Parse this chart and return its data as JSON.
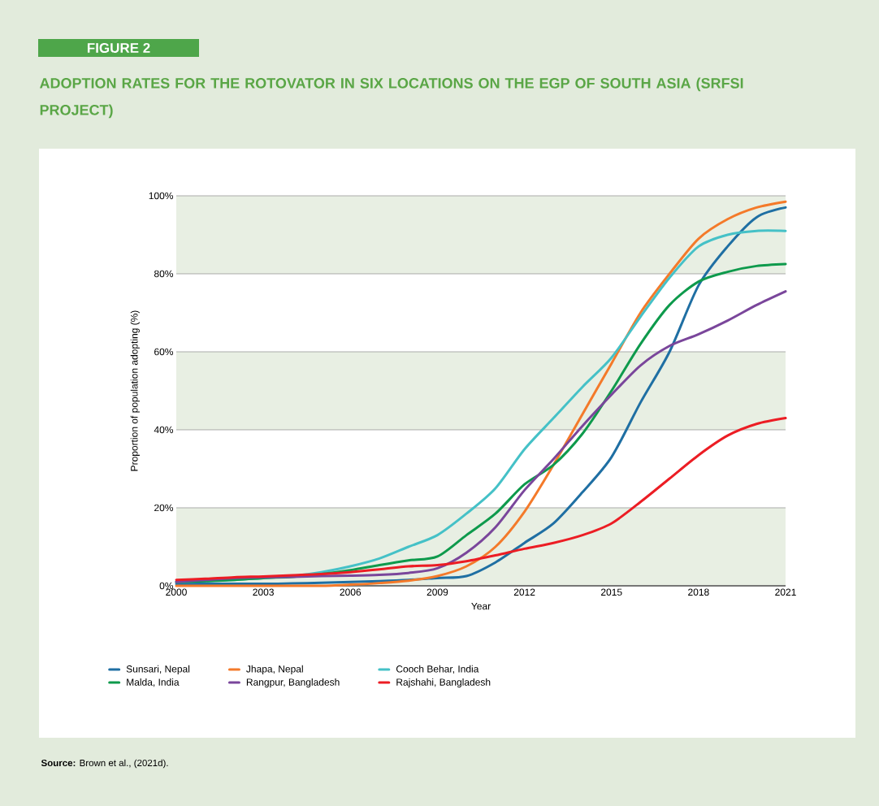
{
  "chart_data": {
    "type": "line",
    "title": "ADOPTION RATES FOR THE ROTOVATOR IN SIX LOCATIONS ON THE EGP OF SOUTH ASIA (SRFSI PROJECT)",
    "xlabel": "Year",
    "ylabel": "Proportion of population adopting (%)",
    "annotations": [
      "FIGURE 2",
      "**Source:** Brown et al., (2021d)."
    ],
    "x": [
      2000,
      2001,
      2002,
      2003,
      2004,
      2005,
      2006,
      2007,
      2008,
      2009,
      2010,
      2011,
      2012,
      2013,
      2014,
      2015,
      2016,
      2017,
      2018,
      2019,
      2020,
      2021
    ],
    "xlim": [
      2000,
      2021
    ],
    "xticks": [
      2000,
      2003,
      2006,
      2009,
      2012,
      2015,
      2018,
      2021
    ],
    "ylim": [
      0,
      100
    ],
    "yticks": [
      {
        "value": 0,
        "label": "0%"
      },
      {
        "value": 20,
        "label": "20%"
      },
      {
        "value": 40,
        "label": "40%"
      },
      {
        "value": 60,
        "label": "60%"
      },
      {
        "value": 80,
        "label": "80%"
      },
      {
        "value": 100,
        "label": "100%"
      }
    ],
    "grid": "y",
    "legend": "bottom",
    "marker": "none",
    "line_style": "solid",
    "bands": [
      {
        "axis": "y",
        "from": 0,
        "to": 20,
        "color": "#e8efe3"
      },
      {
        "axis": "y",
        "from": 40,
        "to": 60,
        "color": "#e8efe3"
      },
      {
        "axis": "y",
        "from": 80,
        "to": 100,
        "color": "#e8efe3"
      }
    ],
    "series": [
      {
        "name": "Sunsari, Nepal",
        "color": "#1f6fa3",
        "values": [
          0.5,
          0.5,
          0.5,
          0.5,
          0.6,
          0.8,
          1,
          1.2,
          1.5,
          2,
          2.5,
          6,
          11,
          16,
          24,
          33,
          47,
          60,
          77,
          87,
          94.5,
          97
        ]
      },
      {
        "name": "Jhapa, Nepal",
        "color": "#f47a2a",
        "values": [
          0,
          0,
          0,
          0,
          0,
          0,
          0.3,
          0.7,
          1.3,
          2.5,
          5,
          10,
          19,
          31,
          44,
          57,
          70,
          80,
          89,
          94,
          97,
          98.5
        ]
      },
      {
        "name": "Cooch Behar, India",
        "color": "#45c1c7",
        "values": [
          1,
          1.2,
          1.5,
          2,
          2.5,
          3.5,
          5,
          7,
          10,
          13,
          18.5,
          25,
          35,
          43,
          51,
          58.5,
          69,
          79,
          87,
          90,
          91,
          91
        ]
      },
      {
        "name": "Malda, India",
        "color": "#0e9a4c",
        "values": [
          1,
          1.2,
          1.5,
          2,
          2.3,
          3,
          4,
          5.3,
          6.5,
          7.5,
          13,
          18.5,
          26,
          31,
          39,
          50,
          62,
          72,
          78,
          80.5,
          82,
          82.5
        ]
      },
      {
        "name": "Rangpur, Bangladesh",
        "color": "#7a469b",
        "values": [
          1,
          1.5,
          2,
          2.2,
          2.3,
          2.5,
          2.6,
          2.8,
          3.3,
          4.5,
          8.5,
          15,
          24.5,
          32.5,
          41,
          49,
          56.5,
          61.5,
          64.5,
          68,
          72,
          75.5
        ]
      },
      {
        "name": "Rajshahi, Bangladesh",
        "color": "#ec1d24",
        "values": [
          1.5,
          1.8,
          2.2,
          2.4,
          2.7,
          3,
          3.5,
          4.2,
          5,
          5.3,
          6.3,
          7.8,
          9.5,
          11,
          13,
          16,
          21.5,
          27.5,
          33.5,
          38.5,
          41.5,
          43
        ]
      }
    ]
  }
}
